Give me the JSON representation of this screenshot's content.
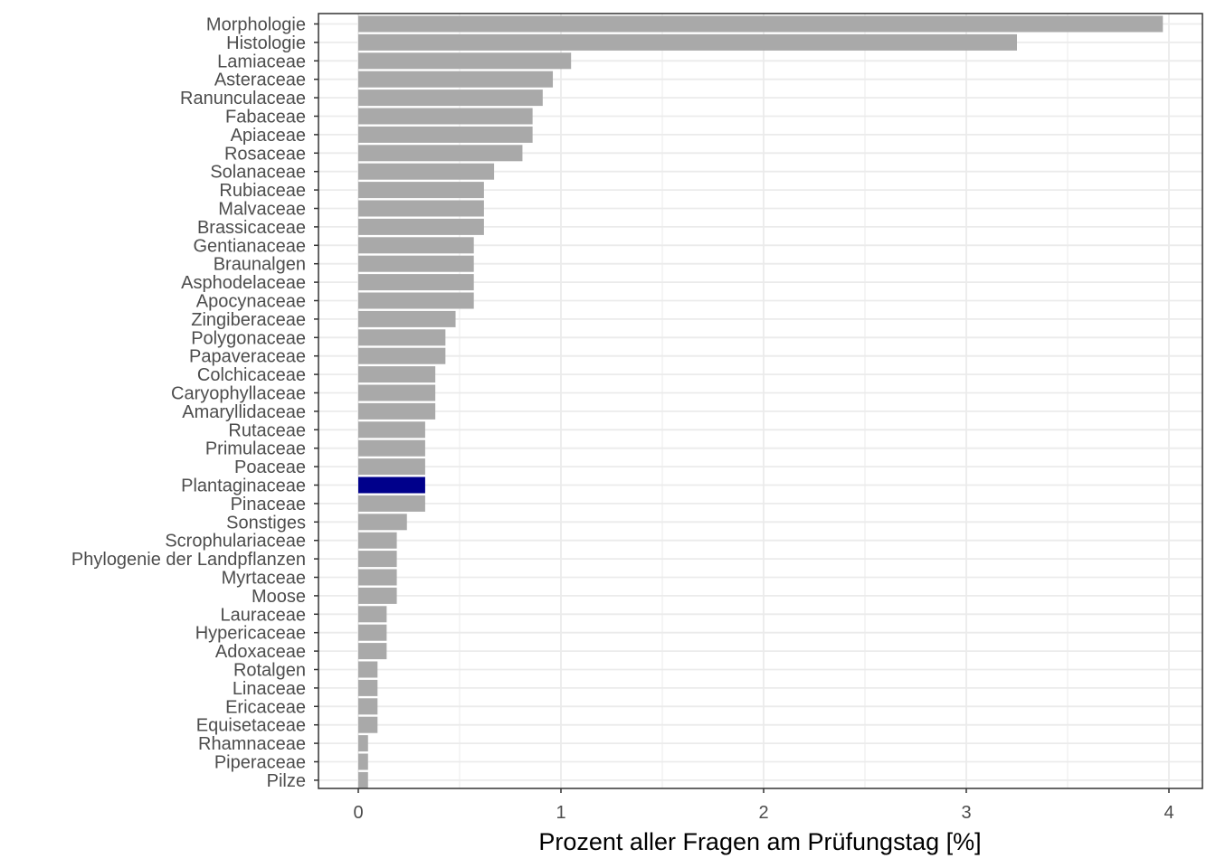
{
  "chart_data": {
    "type": "bar",
    "orientation": "horizontal",
    "xlabel": "Prozent aller Fragen am Prüfungstag [%]",
    "ylabel": "",
    "xlim": [
      -0.2,
      4.17
    ],
    "x_ticks": [
      0,
      1,
      2,
      3,
      4
    ],
    "x_tick_labels": [
      "0",
      "1",
      "2",
      "3",
      "4"
    ],
    "grid": true,
    "legend": "none",
    "colors": {
      "default": "#a9a9a9",
      "highlight": "#00008b",
      "grid": "#ebebeb",
      "panel_border": "#333333",
      "tick_text": "#4d4d4d"
    },
    "highlight_category": "Plantaginaceae",
    "categories": [
      "Morphologie",
      "Histologie",
      "Lamiaceae",
      "Asteraceae",
      "Ranunculaceae",
      "Fabaceae",
      "Apiaceae",
      "Rosaceae",
      "Solanaceae",
      "Rubiaceae",
      "Malvaceae",
      "Brassicaceae",
      "Gentianaceae",
      "Braunalgen",
      "Asphodelaceae",
      "Apocynaceae",
      "Zingiberaceae",
      "Polygonaceae",
      "Papaveraceae",
      "Colchicaceae",
      "Caryophyllaceae",
      "Amaryllidaceae",
      "Rutaceae",
      "Primulaceae",
      "Poaceae",
      "Plantaginaceae",
      "Pinaceae",
      "Sonstiges",
      "Scrophulariaceae",
      "Phylogenie der Landpflanzen",
      "Myrtaceae",
      "Moose",
      "Lauraceae",
      "Hypericaceae",
      "Adoxaceae",
      "Rotalgen",
      "Linaceae",
      "Ericaceae",
      "Equisetaceae",
      "Rhamnaceae",
      "Piperaceae",
      "Pilze"
    ],
    "values": [
      3.97,
      3.25,
      1.05,
      0.96,
      0.91,
      0.86,
      0.86,
      0.81,
      0.67,
      0.62,
      0.62,
      0.62,
      0.57,
      0.57,
      0.57,
      0.57,
      0.48,
      0.43,
      0.43,
      0.38,
      0.38,
      0.38,
      0.33,
      0.33,
      0.33,
      0.33,
      0.33,
      0.24,
      0.19,
      0.19,
      0.19,
      0.19,
      0.14,
      0.14,
      0.14,
      0.095,
      0.095,
      0.095,
      0.095,
      0.048,
      0.048,
      0.048
    ]
  }
}
